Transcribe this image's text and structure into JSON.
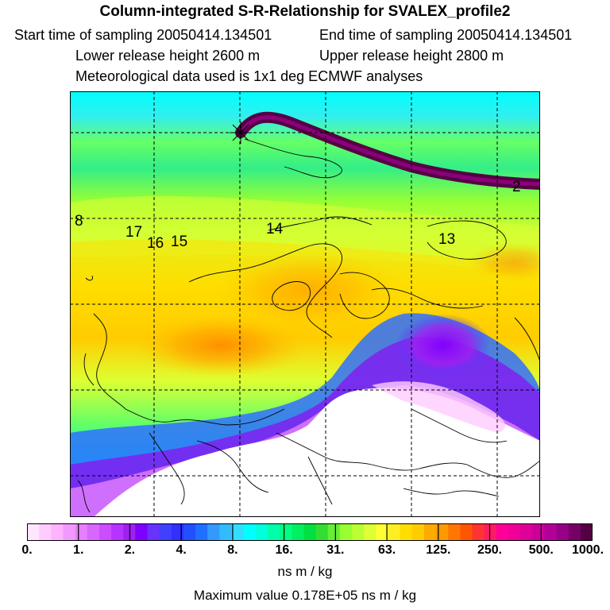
{
  "header": {
    "title": "Column-integrated S-R-Relationship for SVALEX_profile2",
    "start_time": "Start time of sampling 20050414.134501",
    "end_time": "End time of sampling 20050414.134501",
    "lower_height": "Lower release height 2600 m",
    "upper_height": "Upper release height 2800 m",
    "met_data": "Meteorological data used is 1x1 deg ECMWF analyses"
  },
  "map": {
    "trajectory_day_labels": [
      "2",
      "8",
      "13",
      "14",
      "15",
      "16",
      "17"
    ],
    "release_marker": "release-point-star-icon"
  },
  "colorbar": {
    "tick_labels": [
      "0.",
      "1.",
      "2.",
      "4.",
      "8.",
      "16.",
      "31.",
      "63.",
      "125.",
      "250.",
      "500.",
      "1000."
    ],
    "colors": [
      "#ffe6ff",
      "#ffccff",
      "#ffb3ff",
      "#f299ff",
      "#e680ff",
      "#d966ff",
      "#cc4dff",
      "#b833ff",
      "#a020f0",
      "#8000ff",
      "#6633ff",
      "#4040ff",
      "#3030ff",
      "#2050ff",
      "#2070ff",
      "#3399ff",
      "#33bbff",
      "#33ddff",
      "#00ffff",
      "#00ffdd",
      "#00ffaa",
      "#00ff80",
      "#00f060",
      "#00e040",
      "#33dd33",
      "#66ee33",
      "#99ff33",
      "#bbff33",
      "#ddff33",
      "#ffff33",
      "#ffee22",
      "#ffdd00",
      "#ffcc00",
      "#ffaa00",
      "#ff9900",
      "#ff7700",
      "#ff5500",
      "#ff3333",
      "#ff1a66",
      "#ff0099",
      "#ee0099",
      "#dd0099",
      "#cc0099",
      "#b30099",
      "#990088",
      "#770066",
      "#550044"
    ],
    "units": "ns m / kg"
  },
  "footer": {
    "max_value": "Maximum value  0.178E+05 ns m / kg"
  }
}
